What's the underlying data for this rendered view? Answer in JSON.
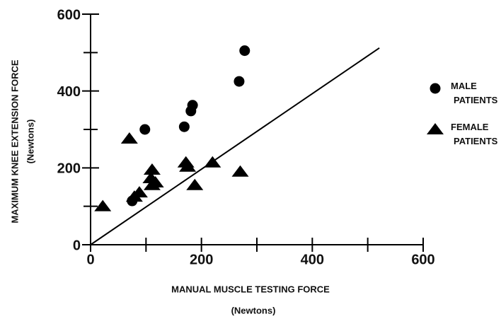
{
  "chart_data": {
    "type": "scatter",
    "xlabel": "MANUAL MUSCLE TESTING FORCE",
    "xlabel_unit": "(Newtons)",
    "ylabel": "MAXIMUM KNEE EXTENSION FORCE",
    "ylabel_unit": "(Newtons)",
    "xlim": [
      0,
      600
    ],
    "ylim": [
      0,
      600
    ],
    "xticks": [
      0,
      200,
      400,
      600
    ],
    "yticks": [
      0,
      200,
      400,
      600
    ],
    "xminorticks": [
      100,
      300,
      500
    ],
    "yminorticks": [
      100,
      300,
      500
    ],
    "reference_line": {
      "x": [
        0,
        521
      ],
      "y": [
        0,
        512
      ]
    },
    "series": [
      {
        "name": "MALE PATIENTS",
        "marker": "circle",
        "color": "#000000",
        "x": [
          75,
          98,
          169,
          181,
          184,
          268,
          278
        ],
        "values": [
          114,
          300,
          307,
          348,
          363,
          425,
          505
        ]
      },
      {
        "name": "FEMALE PATIENTS",
        "marker": "triangle",
        "color": "#000000",
        "x": [
          22,
          70,
          79,
          88,
          111,
          111,
          109,
          117,
          172,
          175,
          188,
          220,
          270
        ],
        "values": [
          100,
          276,
          125,
          136,
          195,
          155,
          173,
          162,
          214,
          203,
          155,
          214,
          190
        ]
      }
    ]
  }
}
